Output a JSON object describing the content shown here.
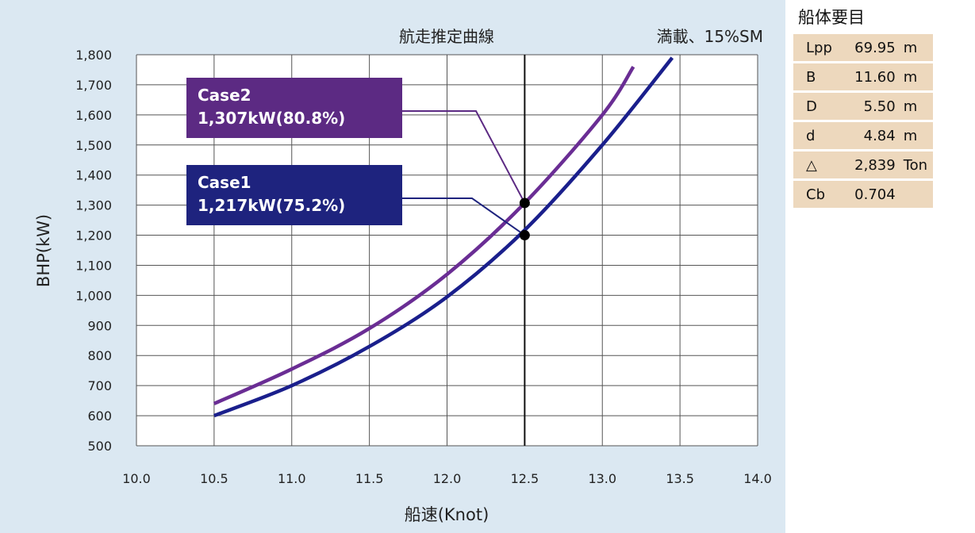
{
  "chart_data": {
    "type": "line",
    "title": "航走推定曲線",
    "condition": "満載、15%SM",
    "xlabel": "船速(Knot)",
    "ylabel": "BHP(kW)",
    "xlim": [
      10.0,
      14.0
    ],
    "ylim": [
      500,
      1800
    ],
    "x_ticks": [
      "10.0",
      "10.5",
      "11.0",
      "11.5",
      "12.0",
      "12.5",
      "13.0",
      "13.5",
      "14.0"
    ],
    "y_ticks": [
      "500",
      "600",
      "700",
      "800",
      "900",
      "1,000",
      "1,100",
      "1,200",
      "1,300",
      "1,400",
      "1,500",
      "1,600",
      "1,700",
      "1,800"
    ],
    "grid": true,
    "reference_speed": 12.5,
    "series": [
      {
        "name": "Case2",
        "color": "#6a2d94",
        "x": [
          10.5,
          11.0,
          11.5,
          12.0,
          12.5,
          13.0,
          13.2
        ],
        "y": [
          640,
          755,
          890,
          1070,
          1307,
          1600,
          1760
        ]
      },
      {
        "name": "Case1",
        "color": "#1a1f8c",
        "x": [
          10.5,
          11.0,
          11.5,
          12.0,
          12.5,
          13.0,
          13.45
        ],
        "y": [
          600,
          700,
          830,
          995,
          1217,
          1500,
          1790
        ]
      }
    ],
    "annotations": [
      {
        "series": "Case2",
        "line1": "Case2",
        "line2": "1,307kW(80.8%)",
        "x": 12.5,
        "y": 1307,
        "bg": "#5c2a83"
      },
      {
        "series": "Case1",
        "line1": "Case1",
        "line2": "1,217kW(75.2%)",
        "x": 12.5,
        "y": 1200,
        "bg": "#1e237e"
      }
    ]
  },
  "spec": {
    "title": "船体要目",
    "rows": [
      {
        "key": "Lpp",
        "value": "69.95",
        "unit": "m"
      },
      {
        "key": "B",
        "value": "11.60",
        "unit": "m"
      },
      {
        "key": "D",
        "value": "5.50",
        "unit": "m"
      },
      {
        "key": "d",
        "value": "4.84",
        "unit": "m"
      },
      {
        "key": "△",
        "value": "2,839",
        "unit": "Ton"
      },
      {
        "key": "Cb",
        "value": "0.704",
        "unit": ""
      }
    ]
  }
}
